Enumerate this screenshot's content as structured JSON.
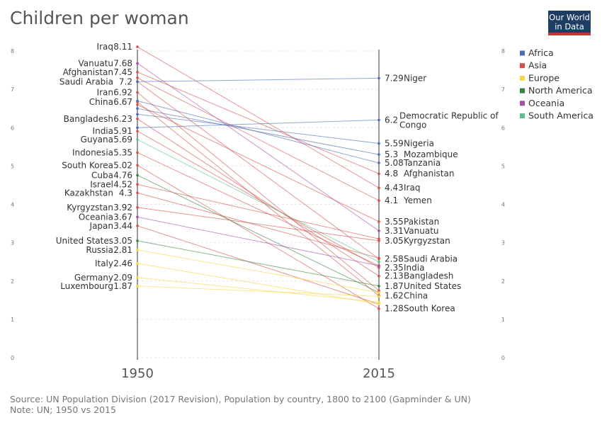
{
  "chart_data": {
    "type": "slope",
    "title": "Children per woman",
    "x": [
      "1950",
      "2015"
    ],
    "ylim": [
      0,
      8
    ],
    "yticks": [
      "0",
      "1",
      "2",
      "3",
      "4",
      "5",
      "6",
      "7",
      "8"
    ],
    "grid": true,
    "legend_position": "right",
    "legend": [
      {
        "name": "Africa",
        "color": "#4c6cb3"
      },
      {
        "name": "Asia",
        "color": "#d1504a"
      },
      {
        "name": "Europe",
        "color": "#f8d640"
      },
      {
        "name": "North America",
        "color": "#3d7f3d"
      },
      {
        "name": "Oceania",
        "color": "#a34ea6"
      },
      {
        "name": "South America",
        "color": "#5ebf8a"
      }
    ],
    "labels_1950": [
      {
        "name": "Iraq",
        "value": "8.11"
      },
      {
        "name": "Vanuatu",
        "value": "7.68"
      },
      {
        "name": "Afghanistan",
        "value": "7.45"
      },
      {
        "name": "Saudi Arabia",
        "value": "7.2"
      },
      {
        "name": "Iran",
        "value": "6.92"
      },
      {
        "name": "China",
        "value": "6.67"
      },
      {
        "name": "Bangladesh",
        "value": "6.23"
      },
      {
        "name": "India",
        "value": "5.91"
      },
      {
        "name": "Guyana",
        "value": "5.69"
      },
      {
        "name": "Indonesia",
        "value": "5.35"
      },
      {
        "name": "South Korea",
        "value": "5.02"
      },
      {
        "name": "Cuba",
        "value": "4.76"
      },
      {
        "name": "Israel",
        "value": "4.52"
      },
      {
        "name": "Kazakhstan",
        "value": "4.3"
      },
      {
        "name": "Kyrgyzstan",
        "value": "3.92"
      },
      {
        "name": "Oceania",
        "value": "3.67"
      },
      {
        "name": "Japan",
        "value": "3.44"
      },
      {
        "name": "United States",
        "value": "3.05"
      },
      {
        "name": "Russia",
        "value": "2.81"
      },
      {
        "name": "Italy",
        "value": "2.46"
      },
      {
        "name": "Germany",
        "value": "2.09"
      },
      {
        "name": "Luxembourg",
        "value": "1.87"
      }
    ],
    "labels_2015": [
      {
        "name": "Niger",
        "value": "7.29"
      },
      {
        "name": "Democratic Republic of Congo",
        "lines": [
          "Democratic Republic of",
          "Congo"
        ],
        "value": "6.2"
      },
      {
        "name": "Nigeria",
        "value": "5.59"
      },
      {
        "name": "Mozambique",
        "value": "5.3"
      },
      {
        "name": "Tanzania",
        "value": "5.08"
      },
      {
        "name": "Afghanistan",
        "value": "4.8"
      },
      {
        "name": "Iraq",
        "value": "4.43"
      },
      {
        "name": "Yemen",
        "value": "4.1"
      },
      {
        "name": "Pakistan",
        "value": "3.55"
      },
      {
        "name": "Vanuatu",
        "value": "3.31"
      },
      {
        "name": "Kyrgyzstan",
        "value": "3.05"
      },
      {
        "name": "Saudi Arabia",
        "value": "2.58"
      },
      {
        "name": "India",
        "value": "2.35"
      },
      {
        "name": "Bangladesh",
        "value": "2.13"
      },
      {
        "name": "United States",
        "value": "1.87"
      },
      {
        "name": "China",
        "value": "1.62"
      },
      {
        "name": "South Korea",
        "value": "1.28"
      }
    ],
    "series": [
      {
        "name": "Iraq",
        "region": "Asia",
        "v1950": 8.11,
        "v2015": 4.43
      },
      {
        "name": "Vanuatu",
        "region": "Oceania",
        "v1950": 7.68,
        "v2015": 3.31
      },
      {
        "name": "Afghanistan",
        "region": "Asia",
        "v1950": 7.45,
        "v2015": 4.8
      },
      {
        "name": "Saudi Arabia",
        "region": "Asia",
        "v1950": 7.2,
        "v2015": 2.58
      },
      {
        "name": "Iran",
        "region": "Asia",
        "v1950": 6.92,
        "v2015": 1.75
      },
      {
        "name": "China",
        "region": "Asia",
        "v1950": 6.67,
        "v2015": 1.62
      },
      {
        "name": "Bangladesh",
        "region": "Asia",
        "v1950": 6.23,
        "v2015": 2.13
      },
      {
        "name": "India",
        "region": "Asia",
        "v1950": 5.91,
        "v2015": 2.35
      },
      {
        "name": "Guyana",
        "region": "South America",
        "v1950": 5.69,
        "v2015": 2.5
      },
      {
        "name": "Indonesia",
        "region": "Asia",
        "v1950": 5.35,
        "v2015": 2.4
      },
      {
        "name": "South Korea",
        "region": "Asia",
        "v1950": 5.02,
        "v2015": 1.28
      },
      {
        "name": "Cuba",
        "region": "North America",
        "v1950": 4.76,
        "v2015": 1.7
      },
      {
        "name": "Israel",
        "region": "Asia",
        "v1950": 4.52,
        "v2015": 3.1
      },
      {
        "name": "Kazakhstan",
        "region": "Asia",
        "v1950": 4.3,
        "v2015": 2.6
      },
      {
        "name": "Kyrgyzstan",
        "region": "Asia",
        "v1950": 3.92,
        "v2015": 3.05
      },
      {
        "name": "Oceania",
        "region": "Oceania",
        "v1950": 3.67,
        "v2015": 2.4
      },
      {
        "name": "Japan",
        "region": "Asia",
        "v1950": 3.44,
        "v2015": 1.4
      },
      {
        "name": "United States",
        "region": "North America",
        "v1950": 3.05,
        "v2015": 1.87
      },
      {
        "name": "Russia",
        "region": "Europe",
        "v1950": 2.81,
        "v2015": 1.7
      },
      {
        "name": "Italy",
        "region": "Europe",
        "v1950": 2.46,
        "v2015": 1.4
      },
      {
        "name": "Germany",
        "region": "Europe",
        "v1950": 2.09,
        "v2015": 1.45
      },
      {
        "name": "Luxembourg",
        "region": "Europe",
        "v1950": 1.87,
        "v2015": 1.6
      },
      {
        "name": "Niger",
        "region": "Africa",
        "v1950": 7.2,
        "v2015": 7.29
      },
      {
        "name": "Democratic Republic of Congo",
        "region": "Africa",
        "v1950": 6.0,
        "v2015": 6.2
      },
      {
        "name": "Nigeria",
        "region": "Africa",
        "v1950": 6.35,
        "v2015": 5.59
      },
      {
        "name": "Mozambique",
        "region": "Africa",
        "v1950": 6.5,
        "v2015": 5.3
      },
      {
        "name": "Tanzania",
        "region": "Africa",
        "v1950": 6.7,
        "v2015": 5.08
      },
      {
        "name": "Yemen",
        "region": "Asia",
        "v1950": 7.3,
        "v2015": 4.1
      },
      {
        "name": "Pakistan",
        "region": "Asia",
        "v1950": 6.6,
        "v2015": 3.55
      }
    ]
  },
  "logo": {
    "line1": "Our World",
    "line2": "in Data"
  },
  "footer": {
    "source": "Source: UN Population Division (2017 Revision), Population by country, 1800 to 2100 (Gapminder & UN)",
    "note": "Note: UN; 1950 vs 2015"
  }
}
